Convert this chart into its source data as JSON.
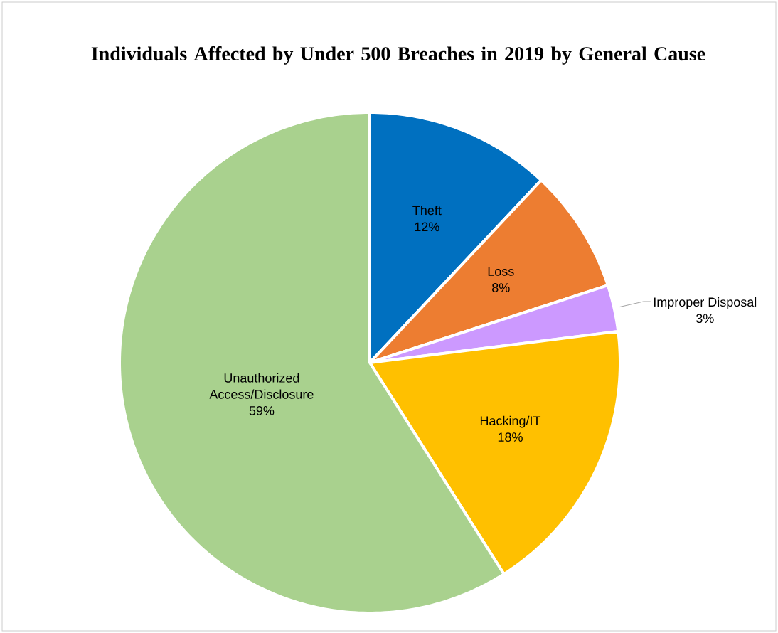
{
  "chart_data": {
    "type": "pie",
    "title": "Individuals Affected by Under 500 Breaches in 2019 by General Cause",
    "categories": [
      "Theft",
      "Loss",
      "Improper Disposal",
      "Hacking/IT",
      "Unauthorized Access/Disclosure"
    ],
    "values": [
      12,
      8,
      3,
      18,
      59
    ],
    "value_labels": [
      "12%",
      "8%",
      "3%",
      "18%",
      "59%"
    ],
    "colors": [
      "#0070c0",
      "#ed7d31",
      "#cc99ff",
      "#ffc000",
      "#a9d18e"
    ]
  }
}
